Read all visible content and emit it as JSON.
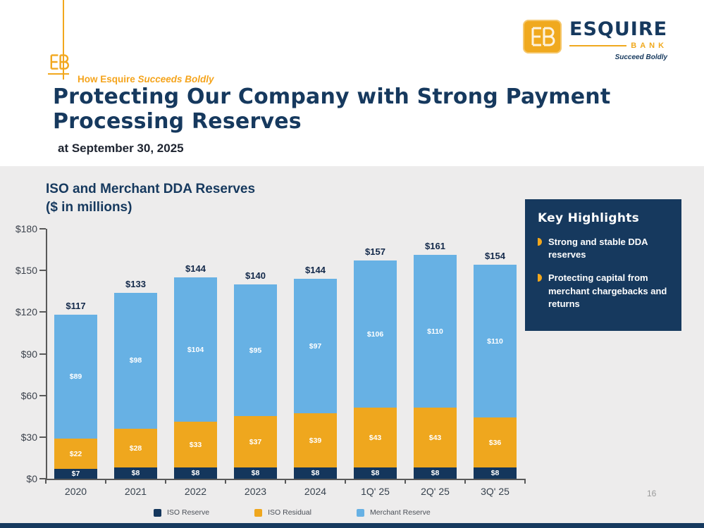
{
  "slide": {
    "eyebrow_prefix": "How Esquire ",
    "eyebrow_italic": "Succeeds Boldly",
    "title_line1": "Protecting Our Company with Strong Payment",
    "title_line2": "Processing Reserves",
    "subtitle": "at September 30, 2025",
    "page_number": "16"
  },
  "logo": {
    "name": "ESQUIRE",
    "bank": "BANK",
    "tagline": "Succeed Boldly"
  },
  "chart": {
    "title_line1": "ISO and Merchant DDA Reserves",
    "title_line2": "($ in millions)"
  },
  "key_highlights": {
    "title": "Key Highlights",
    "bullets": [
      "Strong and stable DDA reserves",
      "Protecting capital from merchant chargebacks and returns"
    ]
  },
  "colors": {
    "navy": "#16395E",
    "gold": "#F0A91E",
    "light_blue": "#67B1E4",
    "panel_gray": "#EDECEC"
  },
  "chart_data": {
    "type": "bar",
    "stacked": true,
    "title": "ISO and Merchant DDA Reserves ($ in millions)",
    "categories": [
      "2020",
      "2021",
      "2022",
      "2023",
      "2024",
      "1Q' 25",
      "2Q' 25",
      "3Q' 25"
    ],
    "series": [
      {
        "name": "ISO Reserve",
        "color": "#14365C",
        "values": [
          7,
          8,
          8,
          8,
          8,
          8,
          8,
          8
        ]
      },
      {
        "name": "ISO Residual",
        "color": "#EFA71E",
        "values": [
          22,
          28,
          33,
          37,
          39,
          43,
          43,
          36
        ]
      },
      {
        "name": "Merchant Reserve",
        "color": "#67B1E4",
        "values": [
          89,
          98,
          104,
          95,
          97,
          106,
          110,
          110
        ]
      }
    ],
    "totals": [
      117,
      133,
      144,
      140,
      144,
      157,
      161,
      154
    ],
    "y_ticks": [
      "$0",
      "$30",
      "$60",
      "$90",
      "$120",
      "$150",
      "$180"
    ],
    "ylim": [
      0,
      180
    ],
    "grid": false,
    "legend_position": "bottom"
  }
}
